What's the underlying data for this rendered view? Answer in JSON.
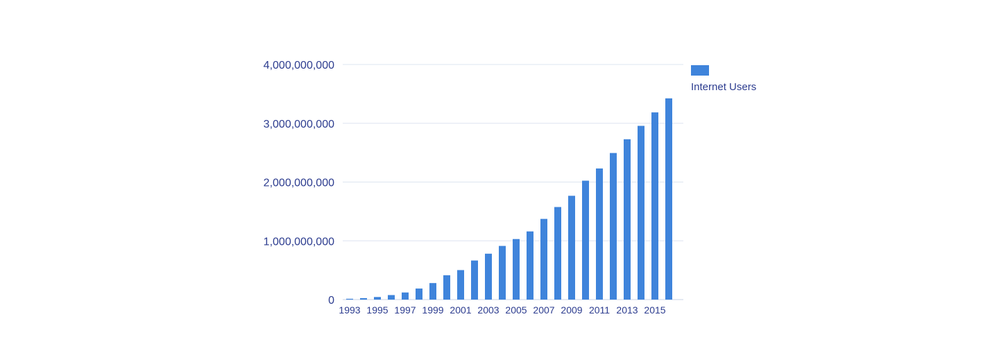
{
  "colors": {
    "bar": "#3f84db",
    "axis_text": "#2c3c8f",
    "gridline": "#dde4f0",
    "baseline": "#c9d3e6"
  },
  "chart_data": {
    "type": "bar",
    "categories": [
      "1993",
      "1994",
      "1995",
      "1996",
      "1997",
      "1998",
      "1999",
      "2000",
      "2001",
      "2002",
      "2003",
      "2004",
      "2005",
      "2006",
      "2007",
      "2008",
      "2009",
      "2010",
      "2011",
      "2012",
      "2013",
      "2014",
      "2015",
      "2016"
    ],
    "x_tick_labels": [
      "1993",
      "1995",
      "1997",
      "1999",
      "2001",
      "2003",
      "2005",
      "2007",
      "2009",
      "2011",
      "2013",
      "2015"
    ],
    "y_tick_labels": [
      "0",
      "1,000,000,000",
      "2,000,000,000",
      "3,000,000,000",
      "4,000,000,000"
    ],
    "y_ticks": [
      0,
      1000000000,
      2000000000,
      3000000000,
      4000000000
    ],
    "series": [
      {
        "name": "Internet Users",
        "values": [
          14000000,
          25000000,
          44000000,
          77000000,
          121000000,
          188000000,
          281000000,
          414000000,
          502000000,
          665000000,
          781000000,
          913000000,
          1030000000,
          1160000000,
          1373000000,
          1575000000,
          1766000000,
          2023000000,
          2231000000,
          2494000000,
          2728000000,
          2956000000,
          3185000000,
          3424000000
        ]
      }
    ],
    "ylim": [
      0,
      4000000000
    ],
    "grid": true,
    "legend_position": "top-right",
    "title": "",
    "xlabel": "",
    "ylabel": ""
  }
}
